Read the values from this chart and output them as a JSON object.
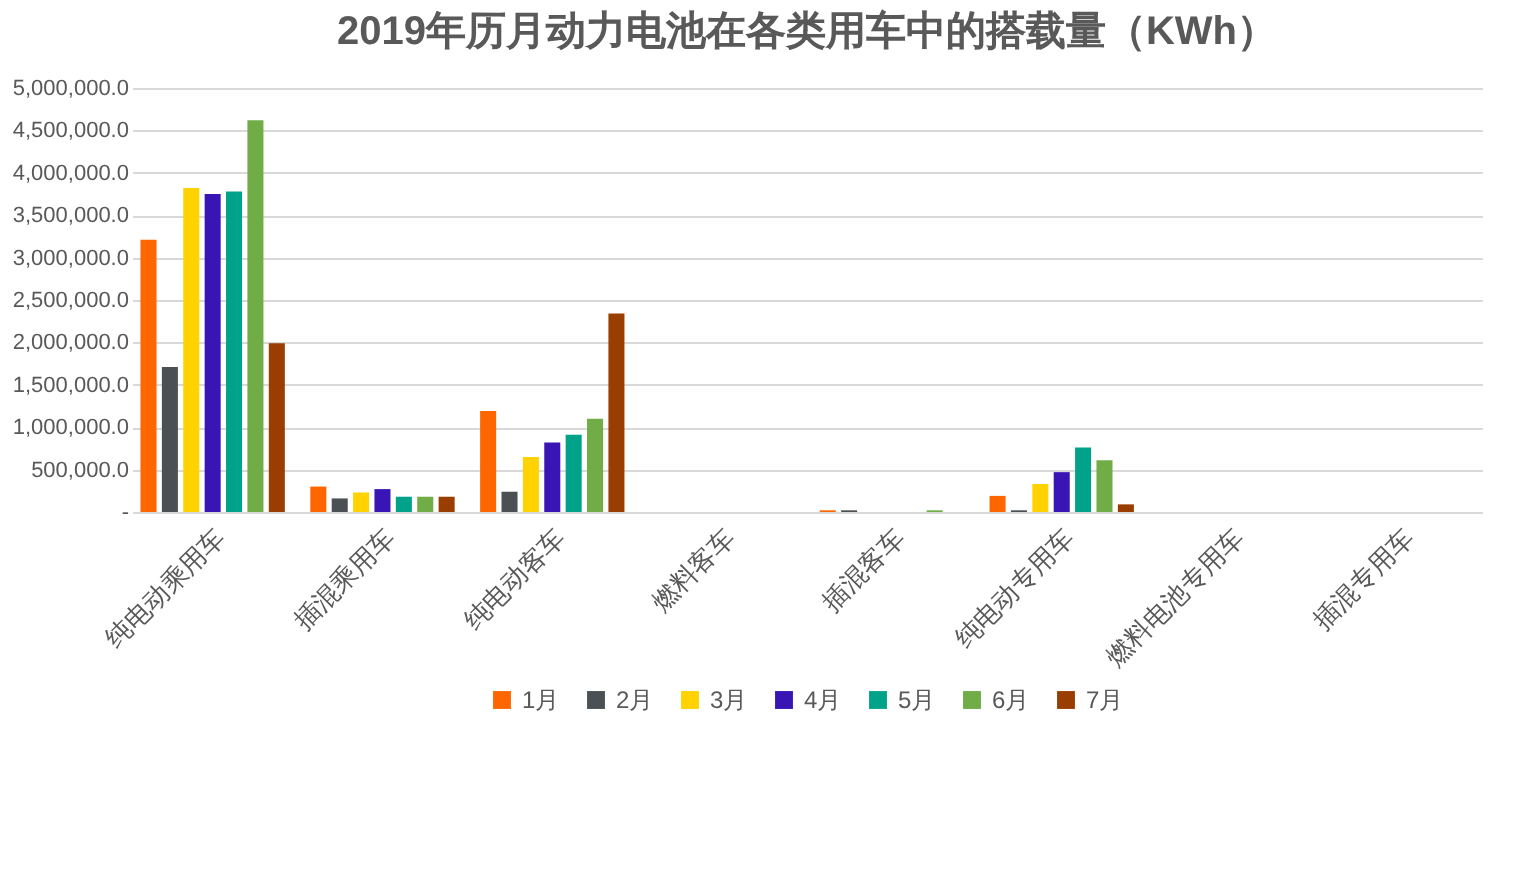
{
  "chart_data": {
    "type": "bar",
    "title": "2019年历月动力电池在各类用车中的搭载量（KWh）",
    "categories": [
      "纯电动乘用车",
      "插混乘用车",
      "纯电动客车",
      "燃料客车",
      "插混客车",
      "纯电动专用车",
      "燃料电池专用车",
      "插混专用车"
    ],
    "series": [
      {
        "name": "1月",
        "color": "#ff6600",
        "values": [
          3210000,
          300000,
          1190000,
          0,
          20000,
          190000,
          0,
          0
        ]
      },
      {
        "name": "2月",
        "color": "#4a5054",
        "values": [
          1710000,
          160000,
          240000,
          0,
          20000,
          20000,
          0,
          0
        ]
      },
      {
        "name": "3月",
        "color": "#ffd200",
        "values": [
          3820000,
          230000,
          650000,
          0,
          0,
          330000,
          0,
          0
        ]
      },
      {
        "name": "4月",
        "color": "#3a15b5",
        "values": [
          3750000,
          270000,
          820000,
          0,
          0,
          470000,
          0,
          0
        ]
      },
      {
        "name": "5月",
        "color": "#00a38a",
        "values": [
          3780000,
          180000,
          910000,
          0,
          0,
          760000,
          0,
          0
        ]
      },
      {
        "name": "6月",
        "color": "#70ad47",
        "values": [
          4620000,
          180000,
          1100000,
          0,
          20000,
          610000,
          0,
          0
        ]
      },
      {
        "name": "7月",
        "color": "#993d00",
        "values": [
          1990000,
          180000,
          2340000,
          0,
          0,
          90000,
          0,
          0
        ]
      }
    ],
    "ylim": [
      0,
      5000000
    ],
    "yticks": [
      {
        "value": 0,
        "label": "-"
      },
      {
        "value": 500000,
        "label": "500,000.0"
      },
      {
        "value": 1000000,
        "label": "1,000,000.0"
      },
      {
        "value": 1500000,
        "label": "1,500,000.0"
      },
      {
        "value": 2000000,
        "label": "2,000,000.0"
      },
      {
        "value": 2500000,
        "label": "2,500,000.0"
      },
      {
        "value": 3000000,
        "label": "3,000,000.0"
      },
      {
        "value": 3500000,
        "label": "3,500,000.0"
      },
      {
        "value": 4000000,
        "label": "4,000,000.0"
      },
      {
        "value": 4500000,
        "label": "4,500,000.0"
      },
      {
        "value": 5000000,
        "label": "5,000,000.0"
      }
    ],
    "grid": "y",
    "legend": "bottom"
  }
}
